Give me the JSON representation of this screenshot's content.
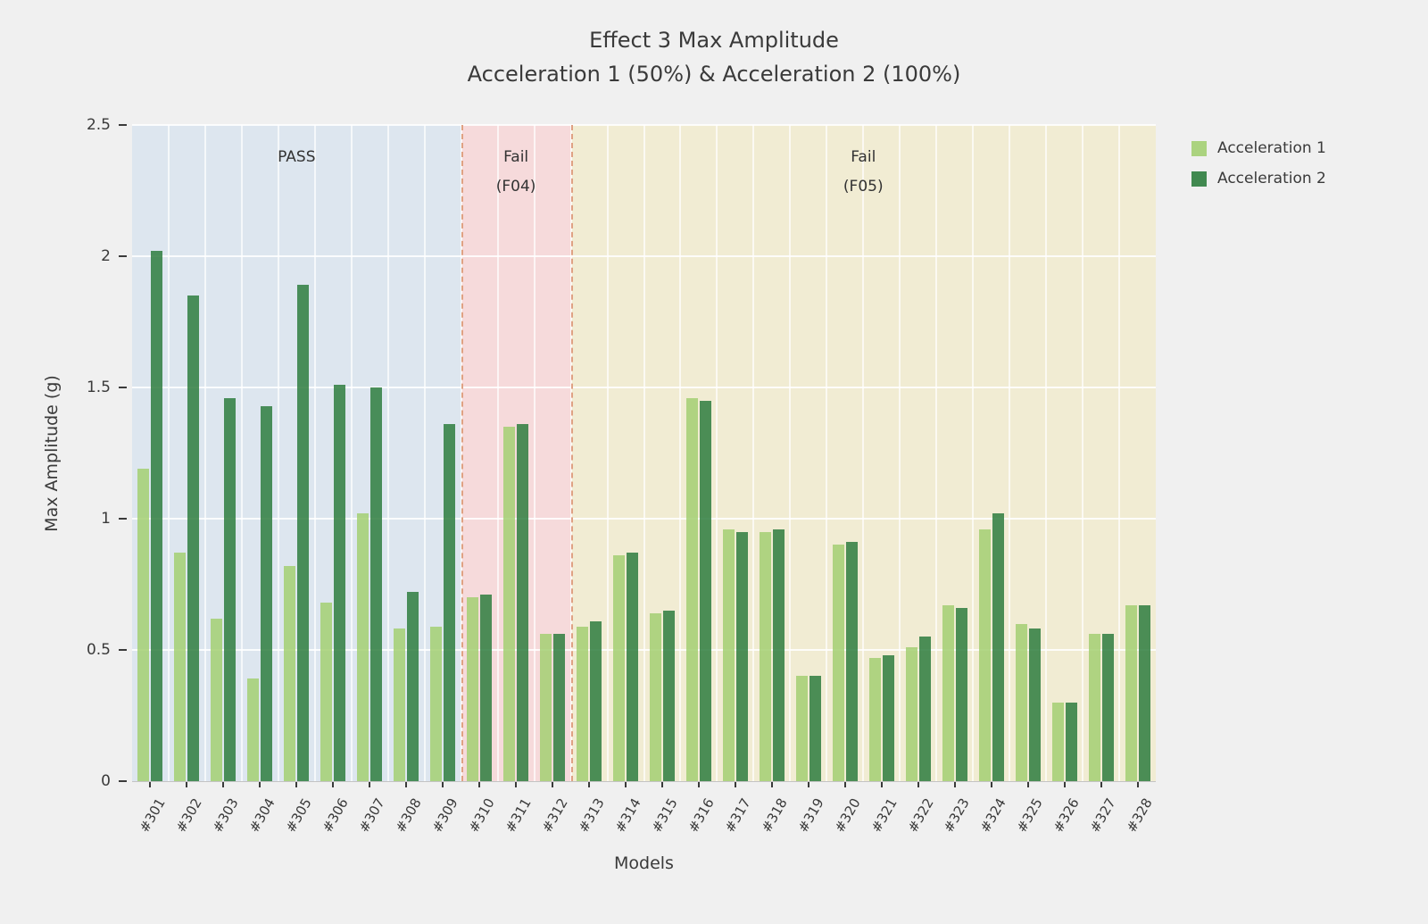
{
  "chart_data": {
    "type": "bar",
    "title": "Effect 3 Max Amplitude\nAcceleration 1 (50%) & Acceleration 2 (100%)",
    "title_lines": [
      "Effect 3 Max Amplitude",
      "Acceleration 1 (50%) & Acceleration 2 (100%)"
    ],
    "xlabel": "Models",
    "ylabel": "Max Amplitude (g)",
    "ylim": [
      0,
      2.5
    ],
    "grid": true,
    "legend_position": "outside-top-right",
    "categories": [
      "#301",
      "#302",
      "#303",
      "#304",
      "#305",
      "#306",
      "#307",
      "#308",
      "#309",
      "#310",
      "#311",
      "#312",
      "#313",
      "#314",
      "#315",
      "#316",
      "#317",
      "#318",
      "#319",
      "#320",
      "#321",
      "#322",
      "#323",
      "#324",
      "#325",
      "#326",
      "#327",
      "#328"
    ],
    "series": [
      {
        "name": "Acceleration 1",
        "color": "#a3cf72",
        "values": [
          1.19,
          0.87,
          0.62,
          0.39,
          0.82,
          0.68,
          1.02,
          0.58,
          0.59,
          0.7,
          1.35,
          0.56,
          0.59,
          0.86,
          0.64,
          1.46,
          0.96,
          0.95,
          0.4,
          0.9,
          0.47,
          0.51,
          0.67,
          0.96,
          0.6,
          0.3,
          0.56,
          0.67
        ]
      },
      {
        "name": "Acceleration 2",
        "color": "#2e7d3e",
        "values": [
          2.02,
          1.85,
          1.46,
          1.43,
          1.89,
          1.51,
          1.5,
          0.72,
          1.36,
          0.71,
          1.36,
          0.56,
          0.61,
          0.87,
          0.65,
          1.45,
          0.95,
          0.96,
          0.4,
          0.91,
          0.48,
          0.55,
          0.66,
          1.02,
          0.58,
          0.3,
          0.56,
          0.67
        ]
      }
    ],
    "yticks": [
      {
        "label": "0",
        "value": 0
      },
      {
        "label": "0.5",
        "value": 0.5
      },
      {
        "label": "1",
        "value": 1
      },
      {
        "label": "1.5",
        "value": 1.5
      },
      {
        "label": "2",
        "value": 2
      },
      {
        "label": "2.5",
        "value": 2.5
      }
    ],
    "regions": [
      {
        "label": "PASS",
        "sublabel": "",
        "start_category": "#301",
        "end_category": "#309",
        "fill": "#dde6ef"
      },
      {
        "label": "Fail",
        "sublabel": "(F04)",
        "start_category": "#310",
        "end_category": "#312",
        "fill": "#f6dadb"
      },
      {
        "label": "Fail",
        "sublabel": "(F05)",
        "start_category": "#313",
        "end_category": "#328",
        "fill": "#f1ecd3"
      }
    ],
    "region_divider_color": "#dfa183"
  }
}
